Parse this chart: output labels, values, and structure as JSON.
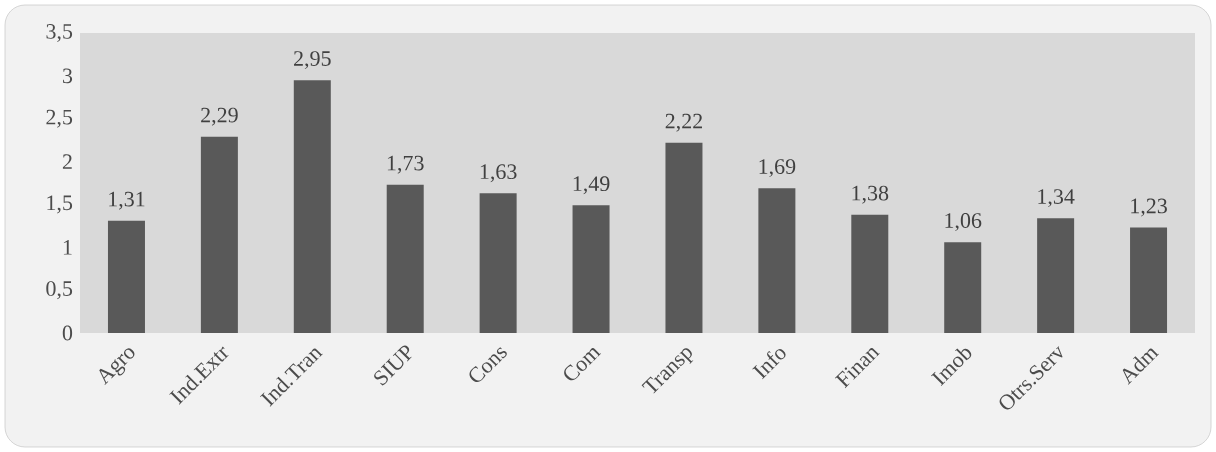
{
  "chart_data": {
    "type": "bar",
    "categories": [
      "Agro",
      "Ind.Extr",
      "Ind.Tran",
      "SIUP",
      "Cons",
      "Com",
      "Transp",
      "Info",
      "Finan",
      "Imob",
      "Otrs.Serv",
      "Adm"
    ],
    "values": [
      1.31,
      2.29,
      2.95,
      1.73,
      1.63,
      1.49,
      2.22,
      1.69,
      1.38,
      1.06,
      1.34,
      1.23
    ],
    "value_labels": [
      "1,31",
      "2,29",
      "2,95",
      "1,73",
      "1,63",
      "1,49",
      "2,22",
      "1,69",
      "1,38",
      "1,06",
      "1,34",
      "1,23"
    ],
    "color": "#595959",
    "ylim": [
      0,
      3.5
    ],
    "yticks": [
      0,
      {
        "value": 0.5,
        "label": "0,5"
      },
      1,
      {
        "value": 1.5,
        "label": "1,5"
      },
      2,
      {
        "value": 2.5,
        "label": "2,5"
      },
      3,
      {
        "value": 3.5,
        "label": "3,5"
      }
    ]
  }
}
